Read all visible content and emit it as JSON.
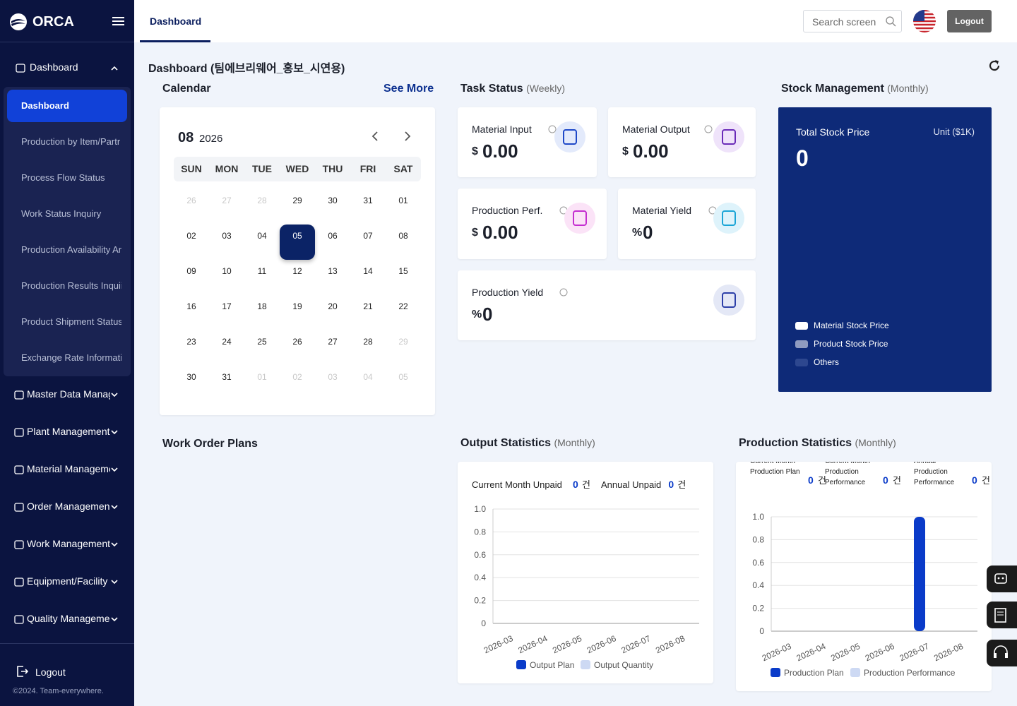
{
  "sidebar": {
    "brand": "ORCA",
    "groups": [
      {
        "label": "Dashboard",
        "items": [
          "Dashboard",
          "Production by Item/Partr",
          "Process Flow Status",
          "Work Status Inquiry",
          "Production Availability Ar",
          "Production Results Inquii",
          "Product Shipment Status",
          "Exchange Rate Informati"
        ]
      },
      {
        "label": "Master Data Manag"
      },
      {
        "label": "Plant Management"
      },
      {
        "label": "Material Manageme"
      },
      {
        "label": "Order Managemen"
      },
      {
        "label": "Work Management"
      },
      {
        "label": "Equipment/Facility I"
      },
      {
        "label": "Quality Manageme"
      }
    ],
    "logout": "Logout",
    "copyright": "©2024. Team-everywhere."
  },
  "header": {
    "tab": "Dashboard",
    "search_placeholder": "Search screen",
    "logout": "Logout"
  },
  "page_title": "Dashboard (팀에브리웨어_홍보_시연용)",
  "calendar": {
    "title": "Calendar",
    "see_more": "See More",
    "month": "08",
    "year": "2026",
    "weekdays": [
      "SUN",
      "MON",
      "TUE",
      "WED",
      "THU",
      "FRI",
      "SAT"
    ],
    "weeks": [
      [
        {
          "label": "26",
          "muted": true
        },
        {
          "label": "27",
          "muted": true
        },
        {
          "label": "28",
          "muted": true
        },
        {
          "label": "29"
        },
        {
          "label": "30"
        },
        {
          "label": "31"
        },
        {
          "label": "01"
        }
      ],
      [
        {
          "label": "02"
        },
        {
          "label": "03"
        },
        {
          "label": "04"
        },
        {
          "label": "05",
          "selected": true
        },
        {
          "label": "06"
        },
        {
          "label": "07"
        },
        {
          "label": "08"
        }
      ],
      [
        {
          "label": "09"
        },
        {
          "label": "10"
        },
        {
          "label": "11"
        },
        {
          "label": "12"
        },
        {
          "label": "13"
        },
        {
          "label": "14"
        },
        {
          "label": "15"
        }
      ],
      [
        {
          "label": "16"
        },
        {
          "label": "17"
        },
        {
          "label": "18"
        },
        {
          "label": "19"
        },
        {
          "label": "20"
        },
        {
          "label": "21"
        },
        {
          "label": "22"
        }
      ],
      [
        {
          "label": "23"
        },
        {
          "label": "24"
        },
        {
          "label": "25"
        },
        {
          "label": "26"
        },
        {
          "label": "27"
        },
        {
          "label": "28"
        },
        {
          "label": "29",
          "muted": true
        }
      ],
      [
        {
          "label": "30"
        },
        {
          "label": "31"
        },
        {
          "label": "01",
          "muted": true
        },
        {
          "label": "02",
          "muted": true
        },
        {
          "label": "03",
          "muted": true
        },
        {
          "label": "04",
          "muted": true
        },
        {
          "label": "05",
          "muted": true
        }
      ]
    ]
  },
  "task_status": {
    "title": "Task Status",
    "period": "(Weekly)",
    "cards": [
      {
        "label": "Material Input",
        "unit": "$",
        "value": "0.00"
      },
      {
        "label": "Material Output",
        "unit": "$",
        "value": "0.00"
      },
      {
        "label": "Production Perf.",
        "unit": "$",
        "value": "0.00"
      },
      {
        "label": "Material Yield",
        "unit": "%",
        "value": "0"
      },
      {
        "label": "Production Yield",
        "unit": "%",
        "value": "0"
      }
    ]
  },
  "stock_management": {
    "title": "Stock Management",
    "period": "(Monthly)",
    "label": "Total Stock Price",
    "unit": "Unit ($1K)",
    "value": "0",
    "legend": [
      {
        "name": "Material Stock Price",
        "color": "#ffffff"
      },
      {
        "name": "Product Stock Price",
        "color": "#8f9bc0"
      },
      {
        "name": "Others",
        "color": "#2d478f"
      }
    ]
  },
  "work_order_plans": {
    "title": "Work Order Plans"
  },
  "output_statistics": {
    "title": "Output Statistics",
    "period": "(Monthly)",
    "summary": [
      {
        "label": "Current Month Unpaid",
        "value": "0",
        "unit": "건"
      },
      {
        "label": "Annual Unpaid",
        "value": "0",
        "unit": "건"
      }
    ],
    "type": "bar",
    "categories": [
      "2026-03",
      "2026-04",
      "2026-05",
      "2026-06",
      "2026-07",
      "2026-08"
    ],
    "series": [
      {
        "name": "Output Plan",
        "color": "#0a3bc9",
        "values": [
          0,
          0,
          0,
          0,
          0,
          0
        ]
      },
      {
        "name": "Output Quantity",
        "color": "#cdd9f3",
        "values": [
          0,
          0,
          0,
          0,
          0,
          0
        ]
      }
    ],
    "ylim": [
      0,
      1
    ],
    "yticks": [
      0,
      0.2,
      0.4,
      0.6,
      0.8,
      {
        "value": 1,
        "label": "1.0"
      }
    ],
    "grid": true
  },
  "production_statistics": {
    "title": "Production Statistics",
    "period": "(Monthly)",
    "summary": [
      {
        "label": "Current Month Production Plan",
        "value": "0",
        "unit": "건"
      },
      {
        "label": "Current Month Production Performance",
        "value": "0",
        "unit": "건"
      },
      {
        "label": "Annual Production Performance",
        "value": "0",
        "unit": "건"
      }
    ],
    "type": "bar",
    "categories": [
      "2026-03",
      "2026-04",
      "2026-05",
      "2026-06",
      "2026-07",
      "2026-08"
    ],
    "series": [
      {
        "name": "Production Plan",
        "color": "#0a3bc9",
        "values": [
          0,
          0,
          0,
          0,
          1,
          0
        ]
      },
      {
        "name": "Production Performance",
        "color": "#cdd9f3",
        "values": [
          0,
          0,
          0,
          0,
          0,
          0
        ]
      }
    ],
    "ylim": [
      0,
      1
    ],
    "yticks": [
      0,
      0.2,
      0.4,
      0.6,
      0.8,
      {
        "value": 1,
        "label": "1.0"
      }
    ],
    "grid": true
  }
}
